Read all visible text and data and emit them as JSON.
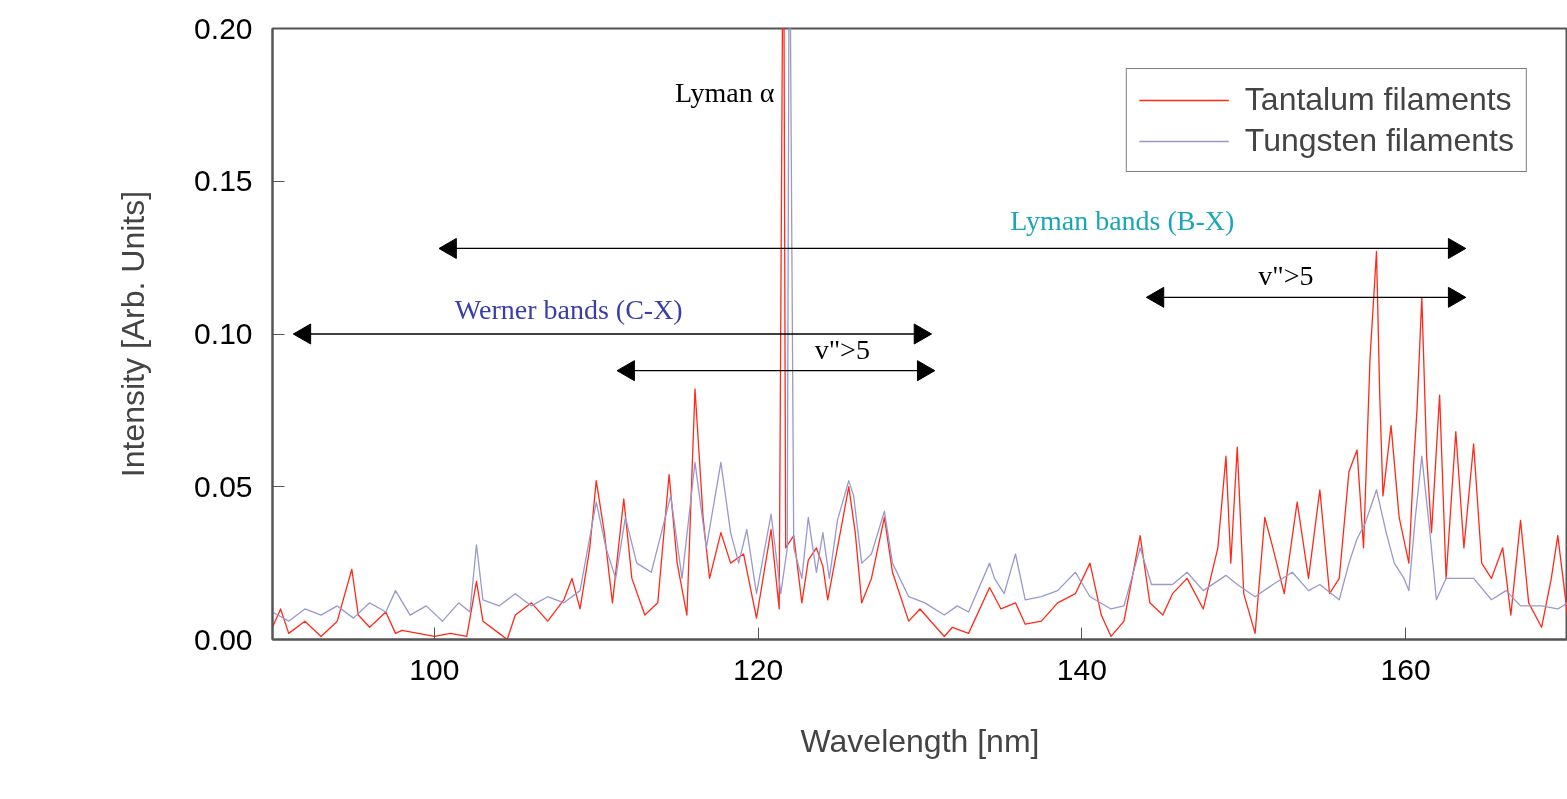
{
  "chart_data": {
    "type": "line",
    "xlabel": "Wavelength [nm]",
    "ylabel": "Intensity [Arb. Units]",
    "xlim": [
      90,
      170
    ],
    "xticks": [
      100,
      120,
      140,
      160
    ],
    "ylim": [
      0,
      0.2
    ],
    "yticks": [
      {
        "value": 0,
        "label": "0.00"
      },
      {
        "value": 0.05,
        "label": "0.05"
      },
      {
        "value": 0.1,
        "label": "0.10"
      },
      {
        "value": 0.15,
        "label": "0.15"
      },
      {
        "value": 0.2,
        "label": "0.20"
      }
    ],
    "grid": false,
    "legend": "top right",
    "series": [
      {
        "name": "Tantalum filaments",
        "color": "#ff2a1a",
        "x": [
          90,
          90.5,
          91,
          92,
          93,
          94,
          94.9,
          95.3,
          96,
          97,
          97.6,
          98,
          99,
          100,
          101,
          102,
          102.6,
          103,
          104,
          104.5,
          105,
          106,
          107,
          108,
          108.5,
          109,
          109.6,
          110,
          110.5,
          111,
          111.7,
          112.2,
          113,
          113.8,
          114.5,
          115,
          115.6,
          116.1,
          116.6,
          117,
          117.7,
          118.3,
          119.1,
          119.9,
          120.8,
          121.3,
          121.5,
          121.6,
          121.7,
          122.2,
          122.7,
          123.1,
          123.6,
          124.0,
          124.3,
          124.9,
          125.6,
          126.0,
          126.4,
          127.0,
          127.8,
          128.3,
          129.3,
          130,
          131.5,
          132,
          133,
          134.3,
          135,
          135.9,
          136.5,
          137.5,
          138.5,
          139.6,
          140.5,
          141.2,
          141.8,
          142.6,
          143.6,
          144.2,
          145,
          145.6,
          146.5,
          147.5,
          148.4,
          148.9,
          149.2,
          149.6,
          150,
          150.7,
          151.3,
          151.8,
          152.5,
          153.3,
          154,
          154.7,
          155.3,
          155.9,
          156.5,
          157,
          157.4,
          157.8,
          158.2,
          158.4,
          158.6,
          159.1,
          159.6,
          160.2,
          160.5,
          160.7,
          161.0,
          161.3,
          161.6,
          162.1,
          162.5,
          163.1,
          163.6,
          164.2,
          164.7,
          165.3,
          166,
          166.5,
          167.1,
          167.6,
          168.4,
          169,
          169.4,
          170
        ],
        "values": [
          0.004,
          0.01,
          0.002,
          0.006,
          0.001,
          0.006,
          0.023,
          0.008,
          0.004,
          0.009,
          0.002,
          0.003,
          0.002,
          0.001,
          0.002,
          0.001,
          0.019,
          0.006,
          0.002,
          0.0,
          0.008,
          0.012,
          0.006,
          0.013,
          0.02,
          0.01,
          0.03,
          0.052,
          0.035,
          0.012,
          0.046,
          0.02,
          0.008,
          0.012,
          0.054,
          0.025,
          0.008,
          0.082,
          0.04,
          0.02,
          0.035,
          0.025,
          0.028,
          0.007,
          0.036,
          0.01,
          0.2,
          0.2,
          0.03,
          0.034,
          0.012,
          0.026,
          0.03,
          0.024,
          0.013,
          0.03,
          0.05,
          0.035,
          0.012,
          0.02,
          0.04,
          0.022,
          0.006,
          0.01,
          0.001,
          0.004,
          0.002,
          0.017,
          0.01,
          0.012,
          0.005,
          0.006,
          0.012,
          0.015,
          0.025,
          0.008,
          0.001,
          0.006,
          0.034,
          0.012,
          0.008,
          0.015,
          0.02,
          0.01,
          0.03,
          0.06,
          0.025,
          0.063,
          0.015,
          0.002,
          0.04,
          0.03,
          0.015,
          0.045,
          0.02,
          0.049,
          0.015,
          0.02,
          0.055,
          0.062,
          0.03,
          0.092,
          0.127,
          0.08,
          0.047,
          0.07,
          0.04,
          0.025,
          0.058,
          0.075,
          0.112,
          0.06,
          0.035,
          0.08,
          0.02,
          0.068,
          0.03,
          0.064,
          0.025,
          0.02,
          0.03,
          0.008,
          0.039,
          0.012,
          0.004,
          0.02,
          0.034,
          0.008
        ]
      },
      {
        "name": "Tungsten filaments",
        "color": "#9999cc",
        "x": [
          90,
          91,
          92,
          93,
          94,
          95,
          96,
          97,
          97.6,
          98.5,
          99.5,
          100.5,
          101.5,
          102.2,
          102.6,
          103,
          104,
          105,
          106,
          107,
          108,
          109,
          110,
          110.6,
          111.2,
          111.8,
          112.5,
          113.4,
          114.6,
          115.3,
          116.1,
          116.8,
          117.7,
          118.3,
          118.8,
          119.3,
          119.9,
          120.8,
          121.4,
          121.8,
          121.9,
          122.0,
          122.2,
          122.7,
          123.1,
          123.6,
          124.0,
          124.4,
          124.9,
          125.6,
          125.9,
          126.4,
          127.0,
          127.8,
          128.3,
          129.3,
          130.3,
          131.5,
          132.3,
          133,
          134.3,
          134.6,
          135.2,
          135.9,
          136.5,
          137.5,
          138.5,
          139.6,
          140.5,
          141.8,
          142.6,
          143.6,
          144.3,
          145.6,
          146.5,
          147.5,
          148.9,
          149.6,
          150.7,
          151.8,
          153,
          154,
          154.7,
          155.9,
          156.5,
          157,
          157.5,
          158.2,
          158.8,
          159.3,
          159.9,
          160.2,
          160.6,
          161.0,
          161.5,
          161.9,
          162.5,
          163.1,
          164.2,
          165.3,
          166.2,
          167.1,
          168.4,
          169.4,
          170
        ],
        "values": [
          0.009,
          0.006,
          0.01,
          0.008,
          0.011,
          0.007,
          0.012,
          0.009,
          0.016,
          0.008,
          0.011,
          0.006,
          0.012,
          0.009,
          0.031,
          0.013,
          0.011,
          0.015,
          0.011,
          0.014,
          0.012,
          0.016,
          0.045,
          0.03,
          0.02,
          0.04,
          0.025,
          0.022,
          0.047,
          0.02,
          0.058,
          0.03,
          0.058,
          0.035,
          0.025,
          0.036,
          0.015,
          0.041,
          0.015,
          0.03,
          0.2,
          0.2,
          0.03,
          0.02,
          0.04,
          0.022,
          0.035,
          0.02,
          0.039,
          0.052,
          0.047,
          0.025,
          0.028,
          0.042,
          0.025,
          0.014,
          0.012,
          0.008,
          0.011,
          0.009,
          0.025,
          0.02,
          0.015,
          0.028,
          0.013,
          0.014,
          0.016,
          0.022,
          0.014,
          0.01,
          0.011,
          0.03,
          0.018,
          0.018,
          0.022,
          0.016,
          0.021,
          0.018,
          0.014,
          0.018,
          0.022,
          0.016,
          0.018,
          0.013,
          0.025,
          0.033,
          0.038,
          0.049,
          0.035,
          0.025,
          0.02,
          0.016,
          0.04,
          0.06,
          0.035,
          0.013,
          0.02,
          0.02,
          0.02,
          0.013,
          0.016,
          0.011,
          0.011,
          0.01,
          0.012
        ]
      },
      {
        "type": "line",
        "marker": "triangle",
        "color": "#000000",
        "x": [
          101,
          163
        ],
        "values": [
          0.128,
          0.128
        ]
      },
      {
        "type": "line",
        "marker": "triangle",
        "color": "#000000",
        "x": [
          92,
          130
        ],
        "values": [
          0.1,
          0.1
        ]
      },
      {
        "type": "line",
        "marker": "triangle",
        "color": "#000000",
        "x": [
          112,
          130.2
        ],
        "values": [
          0.088,
          0.088
        ]
      },
      {
        "type": "line",
        "marker": "triangle",
        "color": "#000000",
        "x": [
          144.7,
          163
        ],
        "values": [
          0.112,
          0.112
        ]
      }
    ],
    "annotations": [
      "Lyman α",
      "Lyman bands (B-X)",
      "Werner bands (C-X)",
      "v\">5",
      "v\">5"
    ]
  }
}
